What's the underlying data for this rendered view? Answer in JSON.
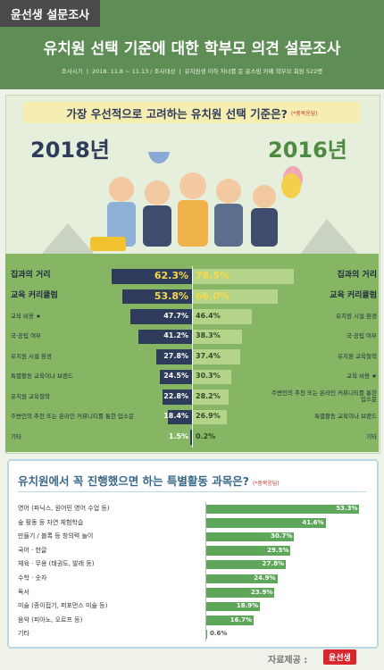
{
  "header": {
    "badge": "윤선생 설문조사",
    "title": "유치원 선택 기준에 대한 학부모 의견 설문조사",
    "info": "조사시기 ㅣ 2018. 11.8 ~ 11.13 / 조사대상 ㅣ 유치원생 이하 자녀를 둔 윤스맘 카페 학부모 회원 522명"
  },
  "chart_data": [
    {
      "type": "butterfly",
      "title": "가장 우선적으로 고려하는 유치원 선택 기준은?",
      "note": "(*중복응답)",
      "xlim": [
        0,
        100
      ],
      "series": [
        {
          "name": "2018년",
          "color": "#2f3b5a",
          "categories": [
            "집과의 거리",
            "교육 커리큘럼",
            "교육 비용 ★",
            "국·공립 여부",
            "유치원 시설 환경",
            "특별활동 교육이나 브랜드",
            "유치원 교육철학",
            "주변인의 추천 또는 온라인 커뮤니티를 통한 입소문",
            "기타"
          ],
          "values": [
            62.3,
            53.8,
            47.7,
            41.2,
            27.8,
            24.5,
            22.8,
            18.4,
            1.5
          ],
          "value_labels": [
            "62.3%",
            "53.8%",
            "47.7%",
            "41.2%",
            "27.8%",
            "24.5%",
            "22.8%",
            "18.4%",
            "1.5%"
          ]
        },
        {
          "name": "2016년",
          "color": "#b4d48a",
          "categories": [
            "집과의 거리",
            "교육 커리큘럼",
            "유치원 시설 환경",
            "국·공립 여부",
            "유치원 교육철학",
            "교육 비용 ★",
            "주변인의 추천 또는 온라인 커뮤니티를 통한 입소문",
            "특별활동 교육이나 브랜드",
            "기타"
          ],
          "values": [
            78.5,
            66.0,
            46.4,
            38.3,
            37.4,
            30.3,
            28.2,
            26.9,
            0.2
          ],
          "value_labels": [
            "78.5%",
            "66.0%",
            "46.4%",
            "38.3%",
            "37.4%",
            "30.3%",
            "28.2%",
            "26.9%",
            "0.2%"
          ]
        }
      ]
    },
    {
      "type": "bar",
      "title": "유치원에서 꼭 진행했으면 하는 특별활동 과목은?",
      "note": "(*중복응답)",
      "color": "#5ea65a",
      "xlim": [
        0,
        55
      ],
      "categories": [
        "영어 (파닉스, 원어민 영어 수업 등)",
        "숲 활동 등 자연 체험학습",
        "만들기 / 블록 등 창의력 놀이",
        "국어 · 한글",
        "체육 · 무용 (태권도, 발레 등)",
        "수학 · 숫자",
        "독서",
        "미술 (종이접기, 퍼포먼스 미술 등)",
        "음악 (피아노, 오르프 등)",
        "기타"
      ],
      "values": [
        53.3,
        41.6,
        30.7,
        29.5,
        27.8,
        24.9,
        23.9,
        18.9,
        16.7,
        0.6
      ],
      "value_labels": [
        "53.3%",
        "41.6%",
        "30.7%",
        "29.5%",
        "27.8%",
        "24.9%",
        "23.9%",
        "18.9%",
        "16.7%",
        "0.6%"
      ]
    }
  ],
  "footer": {
    "source": "자료제공 :",
    "logo": "윤선생"
  }
}
